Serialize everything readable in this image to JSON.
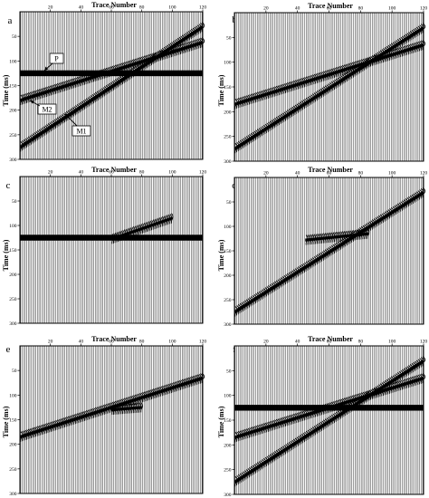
{
  "figure": {
    "panels": [
      {
        "label": "a",
        "title": "Trace Number",
        "ylabel": "Time (ms)",
        "annotations": [
          "P",
          "M2",
          "M1"
        ]
      },
      {
        "label": "b",
        "title": "Trace Number",
        "ylabel": "Time (ms)",
        "annotations": []
      },
      {
        "label": "c",
        "title": "Trace Number",
        "ylabel": "Time (ms)",
        "annotations": []
      },
      {
        "label": "d",
        "title": "Trace Number",
        "ylabel": "Time (ms)",
        "annotations": []
      },
      {
        "label": "e",
        "title": "Trace Number",
        "ylabel": "Time (ms)",
        "annotations": []
      },
      {
        "label": "f",
        "title": "Trace Number",
        "ylabel": "Time (ms)",
        "annotations": []
      }
    ]
  },
  "chart_data": [
    {
      "type": "line",
      "panel": "a",
      "xlabel": "Trace Number",
      "ylabel": "Time (ms)",
      "xlim": [
        0,
        120
      ],
      "ylim": [
        300,
        0
      ],
      "xticks": [
        "20",
        "40",
        "60",
        "80",
        "100",
        "120"
      ],
      "yticks": [
        "50",
        "100",
        "150",
        "200",
        "250",
        "300"
      ],
      "series": [
        {
          "name": "P",
          "x": [
            0,
            120
          ],
          "y": [
            125,
            125
          ]
        },
        {
          "name": "M2",
          "x": [
            0,
            120
          ],
          "y": [
            180,
            62
          ]
        },
        {
          "name": "M1",
          "x": [
            0,
            120
          ],
          "y": [
            275,
            30
          ]
        }
      ]
    },
    {
      "type": "line",
      "panel": "b",
      "xlabel": "Trace Number",
      "ylabel": "Time (ms)",
      "xlim": [
        0,
        120
      ],
      "ylim": [
        300,
        0
      ],
      "xticks": [
        "20",
        "40",
        "60",
        "80",
        "100",
        "120"
      ],
      "yticks": [
        "50",
        "100",
        "150",
        "200",
        "250",
        "300"
      ],
      "series": [
        {
          "x": [
            0,
            120
          ],
          "y": [
            185,
            65
          ]
        },
        {
          "x": [
            0,
            120
          ],
          "y": [
            275,
            30
          ]
        }
      ]
    },
    {
      "type": "line",
      "panel": "c",
      "xlabel": "Trace Number",
      "ylabel": "Time (ms)",
      "xlim": [
        0,
        120
      ],
      "ylim": [
        300,
        0
      ],
      "xticks": [
        "20",
        "40",
        "60",
        "80",
        "100",
        "120"
      ],
      "yticks": [
        "50",
        "100",
        "150",
        "200",
        "250",
        "300"
      ],
      "series": [
        {
          "x": [
            0,
            120
          ],
          "y": [
            125,
            125
          ]
        },
        {
          "x": [
            60,
            100
          ],
          "y": [
            128,
            85
          ]
        }
      ]
    },
    {
      "type": "line",
      "panel": "d",
      "xlabel": "Trace Number",
      "ylabel": "Time (ms)",
      "xlim": [
        0,
        120
      ],
      "ylim": [
        300,
        0
      ],
      "xticks": [
        "20",
        "40",
        "60",
        "80",
        "100",
        "120"
      ],
      "yticks": [
        "50",
        "100",
        "150",
        "200",
        "250",
        "300"
      ],
      "series": [
        {
          "x": [
            0,
            120
          ],
          "y": [
            275,
            30
          ]
        },
        {
          "x": [
            45,
            85
          ],
          "y": [
            128,
            115
          ]
        }
      ]
    },
    {
      "type": "line",
      "panel": "e",
      "xlabel": "Trace Number",
      "ylabel": "Time (ms)",
      "xlim": [
        0,
        120
      ],
      "ylim": [
        300,
        0
      ],
      "xticks": [
        "20",
        "40",
        "60",
        "80",
        "100",
        "120"
      ],
      "yticks": [
        "50",
        "100",
        "150",
        "200",
        "250",
        "300"
      ],
      "series": [
        {
          "x": [
            0,
            120
          ],
          "y": [
            185,
            65
          ]
        },
        {
          "x": [
            60,
            80
          ],
          "y": [
            130,
            125
          ]
        }
      ]
    },
    {
      "type": "line",
      "panel": "f",
      "xlabel": "Trace Number",
      "ylabel": "Time (ms)",
      "xlim": [
        0,
        120
      ],
      "ylim": [
        300,
        0
      ],
      "xticks": [
        "20",
        "40",
        "60",
        "80",
        "100",
        "120"
      ],
      "yticks": [
        "50",
        "100",
        "150",
        "200",
        "250",
        "300"
      ],
      "series": [
        {
          "x": [
            0,
            120
          ],
          "y": [
            125,
            125
          ]
        },
        {
          "x": [
            0,
            120
          ],
          "y": [
            185,
            65
          ]
        },
        {
          "x": [
            0,
            120
          ],
          "y": [
            275,
            30
          ]
        }
      ]
    }
  ]
}
